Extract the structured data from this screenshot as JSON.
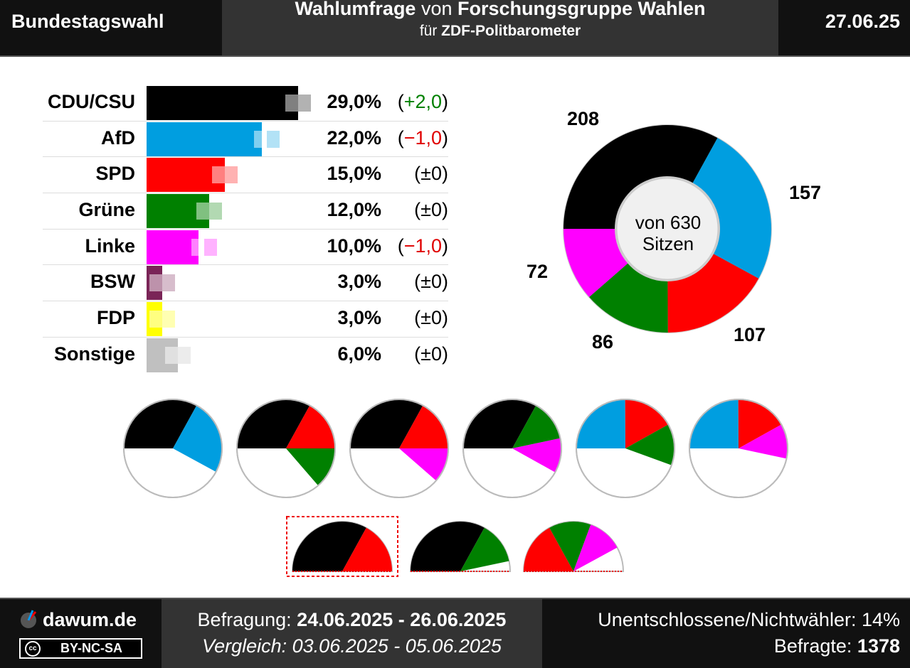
{
  "header": {
    "left": "Bundestagswahl",
    "title_bold1": "Wahlumfrage",
    "title_mid": "von",
    "title_bold2": "Forschungsgruppe Wahlen",
    "subtitle_pre": "für",
    "subtitle_bold": "ZDF-Politbarometer",
    "date": "27.06.25"
  },
  "chart_data": [
    {
      "type": "bar",
      "categories": [
        "CDU/CSU",
        "AfD",
        "SPD",
        "Grüne",
        "Linke",
        "BSW",
        "FDP",
        "Sonstige"
      ],
      "values": [
        29.0,
        22.0,
        15.0,
        12.0,
        10.0,
        3.0,
        3.0,
        6.0
      ],
      "previous": [
        27.0,
        23.0,
        15.0,
        12.0,
        11.0,
        3.0,
        3.0,
        6.0
      ],
      "value_labels": [
        "29,0%",
        "22,0%",
        "15,0%",
        "12,0%",
        "10,0%",
        "3,0%",
        "3,0%",
        "6,0%"
      ],
      "change_labels": [
        "(+2,0)",
        "(−1,0)",
        "(±0)",
        "(±0)",
        "(−1,0)",
        "(±0)",
        "(±0)",
        "(±0)"
      ],
      "change_colors": [
        "#008000",
        "#e00000",
        "#000000",
        "#000000",
        "#e00000",
        "#000000",
        "#000000",
        "#000000"
      ],
      "colors": [
        "#000000",
        "#009ee0",
        "#ff0000",
        "#008000",
        "#ff00ff",
        "#7a2457",
        "#ffff00",
        "#c0c0c0"
      ]
    },
    {
      "type": "pie",
      "categories": [
        "CDU/CSU",
        "AfD",
        "SPD",
        "Grüne",
        "Linke"
      ],
      "values": [
        208,
        157,
        107,
        86,
        72
      ],
      "labels": [
        "208",
        "157",
        "107",
        "86",
        "72"
      ],
      "colors": [
        "#000000",
        "#009ee0",
        "#ff0000",
        "#008000",
        "#ff00ff"
      ],
      "center_line1": "von 630",
      "center_line2": "Sitzen"
    }
  ],
  "coalitions": {
    "row1": [
      {
        "parties": [
          "CDU/CSU",
          "AfD"
        ],
        "seats": [
          208,
          157
        ],
        "colors": [
          "#000000",
          "#009ee0"
        ]
      },
      {
        "parties": [
          "CDU/CSU",
          "SPD",
          "Grüne"
        ],
        "seats": [
          208,
          107,
          86
        ],
        "colors": [
          "#000000",
          "#ff0000",
          "#008000"
        ]
      },
      {
        "parties": [
          "CDU/CSU",
          "SPD",
          "Linke"
        ],
        "seats": [
          208,
          107,
          72
        ],
        "colors": [
          "#000000",
          "#ff0000",
          "#ff00ff"
        ]
      },
      {
        "parties": [
          "CDU/CSU",
          "Grüne",
          "Linke"
        ],
        "seats": [
          208,
          86,
          72
        ],
        "colors": [
          "#000000",
          "#008000",
          "#ff00ff"
        ]
      },
      {
        "parties": [
          "AfD",
          "SPD",
          "Grüne"
        ],
        "seats": [
          157,
          107,
          86
        ],
        "colors": [
          "#009ee0",
          "#ff0000",
          "#008000"
        ]
      },
      {
        "parties": [
          "AfD",
          "SPD",
          "Linke"
        ],
        "seats": [
          157,
          107,
          72
        ],
        "colors": [
          "#009ee0",
          "#ff0000",
          "#ff00ff"
        ]
      }
    ],
    "row2": [
      {
        "parties": [
          "CDU/CSU",
          "SPD"
        ],
        "seats": [
          208,
          107
        ],
        "colors": [
          "#000000",
          "#ff0000"
        ],
        "highlight": true
      },
      {
        "parties": [
          "CDU/CSU",
          "Grüne"
        ],
        "seats": [
          208,
          86
        ],
        "colors": [
          "#000000",
          "#008000"
        ]
      },
      {
        "parties": [
          "SPD",
          "Grüne",
          "Linke"
        ],
        "seats": [
          107,
          86,
          72
        ],
        "colors": [
          "#ff0000",
          "#008000",
          "#ff00ff"
        ]
      }
    ]
  },
  "footer": {
    "site": "dawum.de",
    "license": "BY-NC-SA",
    "cc": "cc",
    "survey_label": "Befragung:",
    "survey_dates": "24.06.2025 - 26.06.2025",
    "compare": "Vergleich: 03.06.2025 - 05.06.2025",
    "undecided": "Unentschlossene/Nichtwähler: 14%",
    "respondents_label": "Befragte:",
    "respondents": "1378"
  }
}
